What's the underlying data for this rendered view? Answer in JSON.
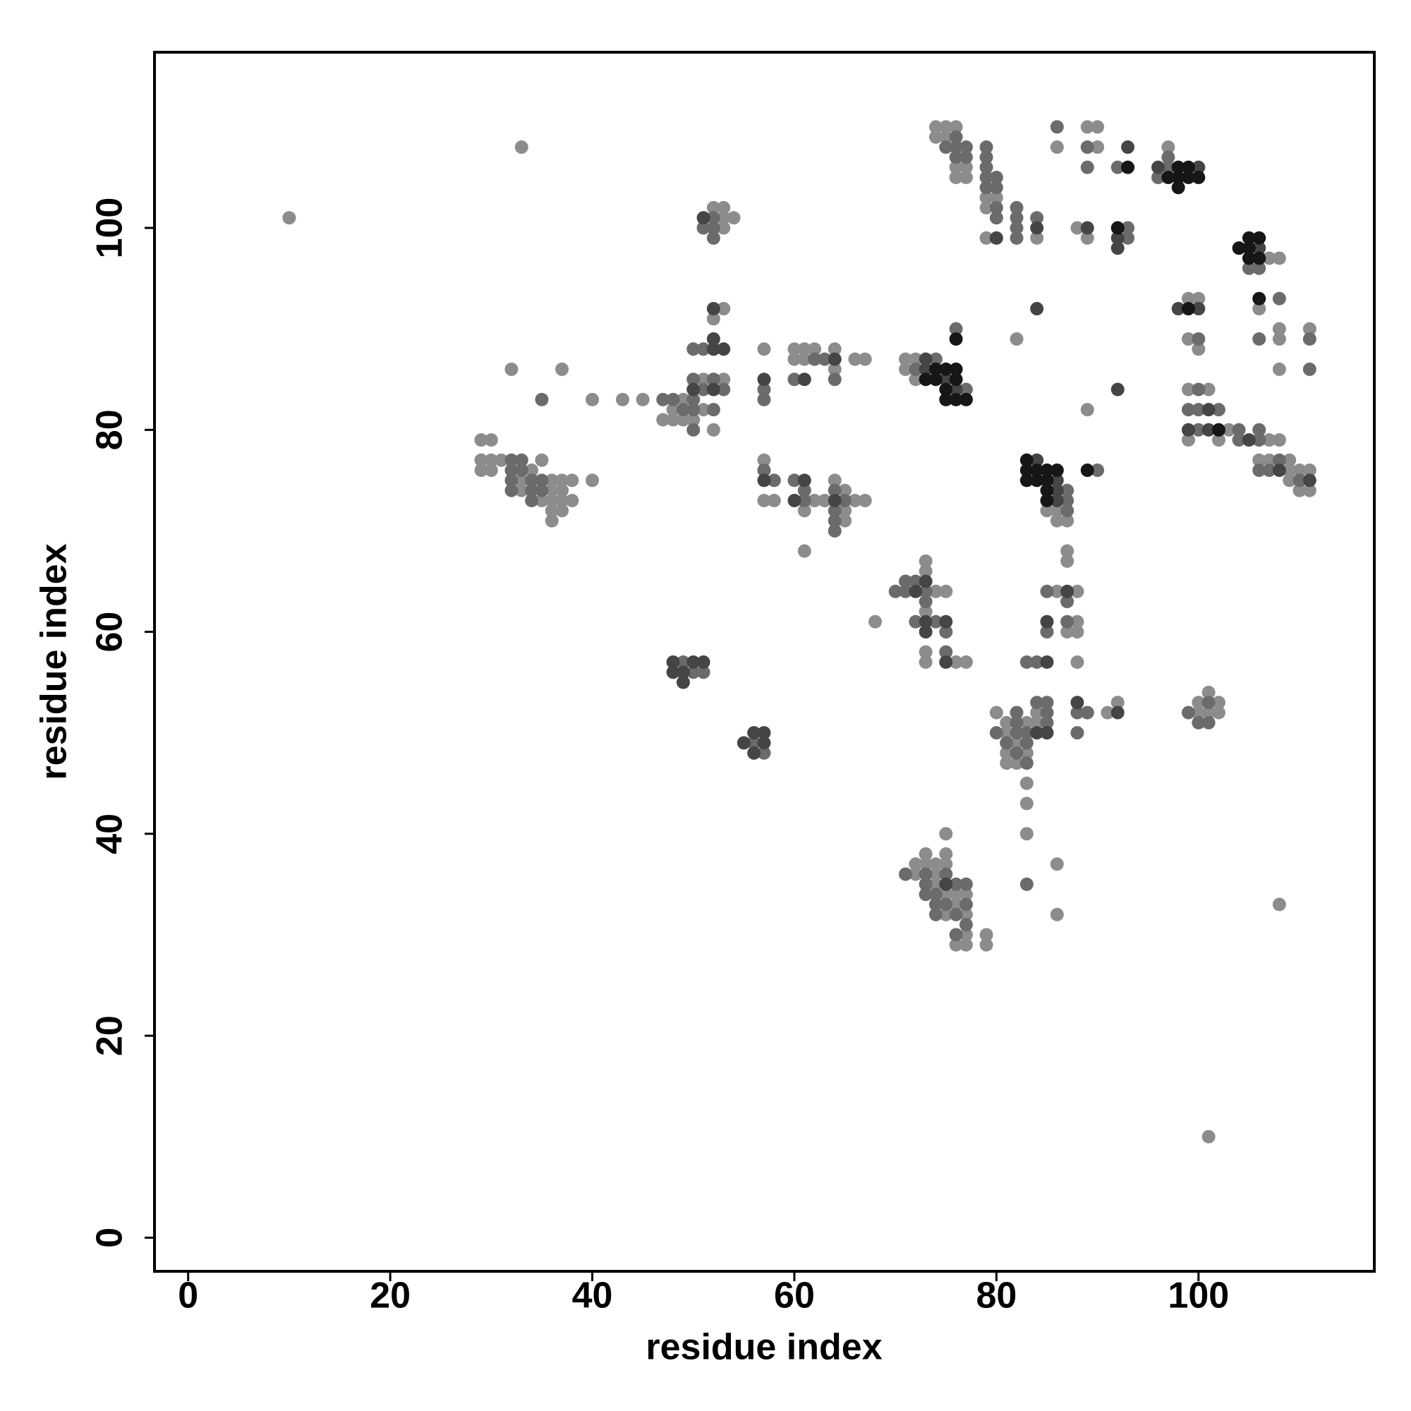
{
  "chart_data": {
    "type": "scatter",
    "x_label": "residue index",
    "y_label": "residue index",
    "xlim": [
      -3.33,
      117.4
    ],
    "ylim": [
      -3.33,
      117.4
    ],
    "xticks": [
      0,
      20,
      40,
      60,
      80,
      100
    ],
    "yticks": [
      0,
      20,
      40,
      60,
      80,
      100
    ],
    "grid": false,
    "series": [
      {
        "color": "#8c8c8c",
        "x": [
          10,
          33,
          101,
          108,
          86,
          86,
          83,
          83,
          83,
          82,
          89,
          68,
          61,
          32,
          37,
          40,
          43,
          45,
          29,
          30,
          29,
          30,
          31,
          35,
          29,
          30,
          34,
          33,
          36,
          37,
          38,
          40,
          33,
          36,
          37,
          35,
          36,
          37,
          38,
          36,
          37,
          36,
          49,
          48,
          51,
          47,
          48,
          49,
          50,
          52,
          51,
          53,
          52,
          53,
          53,
          54,
          52,
          53,
          53,
          57,
          60,
          61,
          62,
          60,
          61,
          64,
          64,
          66,
          67,
          57,
          57,
          58,
          62,
          63,
          66,
          67,
          61,
          64,
          65,
          65,
          65,
          71,
          72,
          71,
          72,
          74,
          75,
          76,
          74,
          75,
          76,
          77,
          76,
          77,
          79,
          80,
          79,
          79,
          84,
          89,
          90,
          86,
          90,
          88,
          89,
          97,
          107,
          108,
          106,
          108,
          108,
          108,
          111,
          99,
          100,
          99,
          100,
          99,
          101,
          103,
          99,
          102,
          107,
          108,
          106,
          107,
          109,
          109,
          110,
          111,
          109,
          110,
          111,
          85,
          86,
          86,
          87,
          73,
          73,
          74,
          75,
          73,
          73,
          73,
          76,
          77,
          87,
          87,
          86,
          88,
          88,
          87,
          88,
          88,
          92,
          84,
          91,
          80,
          81,
          83,
          84,
          81,
          82,
          81,
          83,
          81,
          82,
          101,
          100,
          102,
          100,
          101,
          102,
          75,
          73,
          75,
          72,
          73,
          74,
          75,
          72,
          74,
          74,
          75,
          76,
          77,
          76,
          75,
          77,
          77,
          79,
          76,
          77,
          79
        ],
        "y": [
          101,
          108,
          10,
          33,
          32,
          37,
          40,
          43,
          45,
          89,
          82,
          61,
          68,
          86,
          86,
          83,
          83,
          83,
          79,
          79,
          77,
          77,
          77,
          77,
          76,
          76,
          76,
          75,
          75,
          75,
          75,
          75,
          74,
          74,
          74,
          73,
          73,
          73,
          73,
          72,
          72,
          71,
          83,
          82,
          82,
          81,
          81,
          81,
          81,
          80,
          85,
          85,
          91,
          92,
          101,
          101,
          102,
          102,
          100,
          88,
          88,
          88,
          88,
          87,
          87,
          88,
          86,
          87,
          87,
          77,
          73,
          73,
          73,
          73,
          73,
          73,
          72,
          75,
          74,
          72,
          71,
          87,
          87,
          86,
          85,
          110,
          110,
          110,
          109,
          109,
          106,
          106,
          105,
          105,
          103,
          103,
          102,
          99,
          99,
          110,
          110,
          108,
          108,
          100,
          99,
          108,
          97,
          97,
          92,
          90,
          89,
          86,
          90,
          93,
          93,
          89,
          88,
          84,
          84,
          80,
          79,
          79,
          79,
          79,
          77,
          77,
          77,
          76,
          76,
          76,
          75,
          74,
          74,
          72,
          72,
          71,
          71,
          67,
          66,
          64,
          64,
          62,
          58,
          57,
          57,
          57,
          68,
          67,
          64,
          64,
          61,
          60,
          60,
          57,
          53,
          52,
          52,
          52,
          51,
          51,
          51,
          50,
          49,
          48,
          48,
          47,
          47,
          54,
          53,
          53,
          52,
          52,
          52,
          40,
          38,
          38,
          37,
          37,
          37,
          37,
          36,
          36,
          35,
          34,
          34,
          34,
          33,
          32,
          32,
          30,
          30,
          29,
          29,
          29
        ]
      },
      {
        "color": "#6b6b6b",
        "x": [
          83,
          35,
          32,
          33,
          32,
          33,
          32,
          34,
          35,
          32,
          34,
          35,
          34,
          47,
          48,
          50,
          49,
          50,
          52,
          50,
          50,
          51,
          50,
          52,
          51,
          53,
          52,
          51,
          52,
          52,
          57,
          57,
          62,
          60,
          63,
          64,
          57,
          58,
          60,
          61,
          61,
          65,
          64,
          64,
          64,
          64,
          74,
          72,
          77,
          76,
          76,
          75,
          76,
          77,
          79,
          76,
          77,
          79,
          79,
          79,
          80,
          79,
          80,
          80,
          82,
          80,
          82,
          84,
          82,
          82,
          86,
          89,
          89,
          92,
          93,
          93,
          97,
          97,
          96,
          105,
          106,
          108,
          106,
          111,
          111,
          100,
          100,
          99,
          100,
          102,
          100,
          104,
          106,
          104,
          106,
          108,
          106,
          107,
          110,
          87,
          87,
          87,
          90,
          71,
          72,
          70,
          71,
          73,
          73,
          72,
          74,
          75,
          75,
          85,
          87,
          85,
          87,
          83,
          84,
          84,
          85,
          82,
          85,
          88,
          89,
          82,
          85,
          80,
          82,
          83,
          88,
          81,
          83,
          82,
          83,
          101,
          99,
          100,
          101,
          71,
          73,
          75,
          73,
          76,
          77,
          73,
          74,
          74,
          75,
          77,
          74,
          76,
          77,
          76,
          50,
          51,
          49,
          56,
          57
        ],
        "y": [
          35,
          83,
          77,
          77,
          76,
          76,
          75,
          75,
          75,
          74,
          74,
          74,
          73,
          83,
          83,
          83,
          82,
          82,
          82,
          80,
          88,
          88,
          85,
          85,
          84,
          84,
          101,
          100,
          100,
          99,
          84,
          83,
          87,
          85,
          87,
          85,
          76,
          75,
          75,
          74,
          73,
          73,
          74,
          72,
          71,
          70,
          87,
          86,
          84,
          90,
          109,
          108,
          108,
          108,
          108,
          107,
          107,
          107,
          106,
          105,
          105,
          104,
          104,
          102,
          102,
          101,
          101,
          101,
          100,
          99,
          110,
          108,
          106,
          106,
          100,
          99,
          107,
          106,
          105,
          96,
          96,
          93,
          89,
          89,
          86,
          89,
          84,
          82,
          82,
          82,
          80,
          80,
          80,
          79,
          79,
          77,
          76,
          76,
          75,
          74,
          73,
          72,
          76,
          65,
          65,
          64,
          64,
          64,
          63,
          61,
          61,
          60,
          58,
          64,
          63,
          60,
          61,
          57,
          57,
          53,
          53,
          52,
          52,
          52,
          52,
          51,
          51,
          50,
          50,
          50,
          50,
          49,
          49,
          48,
          47,
          53,
          52,
          51,
          51,
          36,
          36,
          36,
          35,
          35,
          35,
          34,
          34,
          33,
          33,
          33,
          32,
          32,
          31,
          30,
          56,
          56,
          57,
          49,
          48
        ]
      },
      {
        "color": "#454545",
        "x": [
          84,
          92,
          52,
          53,
          52,
          50,
          52,
          52,
          51,
          57,
          61,
          64,
          57,
          61,
          60,
          64,
          73,
          73,
          75,
          76,
          84,
          80,
          93,
          89,
          92,
          92,
          96,
          100,
          106,
          98,
          100,
          101,
          99,
          101,
          105,
          108,
          111,
          84,
          86,
          86,
          86,
          73,
          72,
          73,
          75,
          73,
          75,
          87,
          85,
          85,
          88,
          92,
          84,
          85,
          75,
          48,
          50,
          51,
          48,
          49,
          49,
          56,
          57,
          55,
          57,
          56
        ],
        "y": [
          92,
          84,
          88,
          88,
          89,
          84,
          84,
          92,
          101,
          85,
          85,
          87,
          75,
          75,
          73,
          73,
          87,
          86,
          85,
          84,
          100,
          99,
          108,
          100,
          99,
          98,
          106,
          106,
          98,
          92,
          92,
          82,
          80,
          80,
          79,
          76,
          75,
          77,
          75,
          74,
          73,
          65,
          64,
          61,
          61,
          60,
          57,
          64,
          61,
          57,
          53,
          52,
          50,
          50,
          35,
          57,
          57,
          57,
          56,
          56,
          55,
          50,
          50,
          49,
          49,
          48
        ]
      },
      {
        "color": "#161616",
        "x": [
          74,
          75,
          76,
          73,
          74,
          76,
          75,
          75,
          76,
          77,
          76,
          93,
          92,
          98,
          99,
          97,
          98,
          99,
          100,
          98,
          105,
          106,
          104,
          105,
          105,
          106,
          106,
          99,
          102,
          83,
          83,
          84,
          85,
          86,
          83,
          84,
          85,
          85,
          85,
          89
        ],
        "y": [
          86,
          86,
          86,
          85,
          85,
          85,
          84,
          83,
          83,
          83,
          89,
          106,
          100,
          106,
          106,
          105,
          105,
          105,
          105,
          104,
          99,
          99,
          98,
          98,
          97,
          97,
          93,
          92,
          80,
          77,
          76,
          76,
          76,
          76,
          75,
          75,
          75,
          74,
          73,
          76
        ]
      }
    ]
  }
}
